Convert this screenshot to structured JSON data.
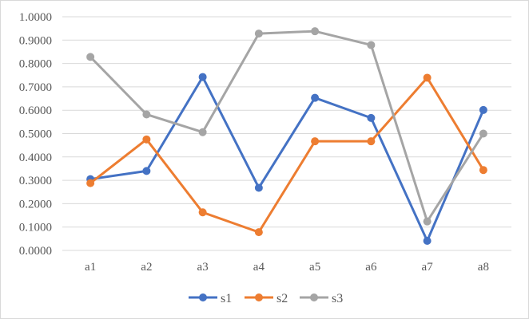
{
  "chart_data": {
    "type": "line",
    "title": "",
    "xlabel": "",
    "ylabel": "",
    "categories": [
      "a1",
      "a2",
      "a3",
      "a4",
      "a5",
      "a6",
      "a7",
      "a8"
    ],
    "ylim": [
      0,
      1
    ],
    "yticks": [
      "0.0000",
      "0.1000",
      "0.2000",
      "0.3000",
      "0.4000",
      "0.5000",
      "0.6000",
      "0.7000",
      "0.8000",
      "0.9000",
      "1.0000"
    ],
    "grid": true,
    "legend_position": "bottom",
    "series": [
      {
        "name": "s1",
        "color": "#4472c4",
        "values": [
          0.305,
          0.34,
          0.742,
          0.268,
          0.653,
          0.567,
          0.041,
          0.601
        ]
      },
      {
        "name": "s2",
        "color": "#ed7d31",
        "values": [
          0.288,
          0.475,
          0.163,
          0.078,
          0.467,
          0.467,
          0.739,
          0.344
        ]
      },
      {
        "name": "s3",
        "color": "#a5a5a5",
        "values": [
          0.828,
          0.582,
          0.506,
          0.928,
          0.938,
          0.879,
          0.124,
          0.5
        ]
      }
    ]
  }
}
